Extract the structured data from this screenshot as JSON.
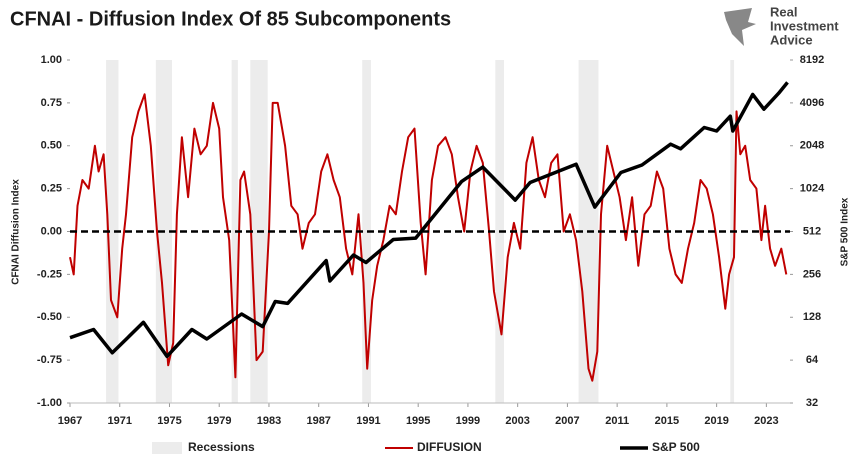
{
  "chart_data": {
    "type": "line",
    "title": "CFNAI - Diffusion Index Of 85 Subcomponents",
    "brand": [
      "Real",
      "Investment",
      "Advice"
    ],
    "ylabel": "CFNAI Diffusion Index",
    "y2label": "S&P 500 Index",
    "xlim": [
      1967,
      2024.9
    ],
    "xticks": [
      1967,
      1971,
      1975,
      1979,
      1983,
      1987,
      1991,
      1995,
      1999,
      2003,
      2007,
      2011,
      2015,
      2019,
      2023
    ],
    "ylim": [
      -1,
      1
    ],
    "yticks": [
      {
        "value": -1,
        "label": "-1.00"
      },
      {
        "value": -0.75,
        "label": "-0.75"
      },
      {
        "value": -0.5,
        "label": "-0.50"
      },
      {
        "value": -0.25,
        "label": "-0.25"
      },
      {
        "value": 0,
        "label": "0.00"
      },
      {
        "value": 0.25,
        "label": "0.25"
      },
      {
        "value": 0.5,
        "label": "0.50"
      },
      {
        "value": 0.75,
        "label": "0.75"
      },
      {
        "value": 1,
        "label": "1.00"
      }
    ],
    "y2lim": [
      32,
      8192
    ],
    "y2ticks": [
      32,
      64,
      128,
      256,
      512,
      1024,
      2048,
      4096,
      8192
    ],
    "y2log": true,
    "reference_line": 0,
    "recessions": {
      "name": "Recessions",
      "color": "#ececec",
      "ranges": [
        [
          1969.9,
          1970.9
        ],
        [
          1973.9,
          1975.2
        ],
        [
          1980.0,
          1980.5
        ],
        [
          1981.5,
          1982.9
        ],
        [
          1990.5,
          1991.2
        ],
        [
          2001.2,
          2001.9
        ],
        [
          2007.9,
          2009.5
        ],
        [
          2020.1,
          2020.4
        ]
      ]
    },
    "series": [
      {
        "name": "DIFFUSION",
        "color": "#c00000",
        "width": 2,
        "x": [
          1967.0,
          1967.3,
          1967.6,
          1968.0,
          1968.5,
          1969.0,
          1969.3,
          1969.7,
          1970.0,
          1970.3,
          1970.8,
          1971.2,
          1971.5,
          1972.0,
          1972.5,
          1973.0,
          1973.5,
          1974.0,
          1974.4,
          1974.9,
          1975.3,
          1975.6,
          1976.0,
          1976.5,
          1977.0,
          1977.5,
          1978.0,
          1978.5,
          1979.0,
          1979.3,
          1979.8,
          1980.3,
          1980.7,
          1981.0,
          1981.5,
          1982.0,
          1982.5,
          1983.0,
          1983.3,
          1983.7,
          1984.3,
          1984.8,
          1985.3,
          1985.7,
          1986.2,
          1986.7,
          1987.2,
          1987.7,
          1988.2,
          1988.7,
          1989.2,
          1989.7,
          1990.2,
          1990.6,
          1990.9,
          1991.3,
          1991.7,
          1992.2,
          1992.7,
          1993.2,
          1993.7,
          1994.2,
          1994.7,
          1995.2,
          1995.6,
          1996.1,
          1996.6,
          1997.2,
          1997.7,
          1998.2,
          1998.7,
          1999.2,
          1999.7,
          2000.2,
          2000.7,
          2001.1,
          2001.7,
          2002.2,
          2002.7,
          2003.2,
          2003.7,
          2004.2,
          2004.7,
          2005.2,
          2005.7,
          2006.2,
          2006.7,
          2007.2,
          2007.7,
          2008.2,
          2008.7,
          2009.0,
          2009.4,
          2009.7,
          2010.2,
          2010.7,
          2011.2,
          2011.7,
          2012.2,
          2012.7,
          2013.2,
          2013.7,
          2014.2,
          2014.7,
          2015.2,
          2015.7,
          2016.2,
          2016.7,
          2017.2,
          2017.7,
          2018.2,
          2018.7,
          2019.2,
          2019.7,
          2020.0,
          2020.4,
          2020.6,
          2020.9,
          2021.3,
          2021.7,
          2022.2,
          2022.6,
          2022.9,
          2023.3,
          2023.7,
          2024.2,
          2024.6
        ],
        "values": [
          -0.15,
          -0.25,
          0.15,
          0.3,
          0.25,
          0.5,
          0.35,
          0.45,
          0.1,
          -0.4,
          -0.5,
          -0.1,
          0.1,
          0.55,
          0.7,
          0.8,
          0.5,
          0.0,
          -0.3,
          -0.78,
          -0.65,
          0.1,
          0.55,
          0.2,
          0.6,
          0.45,
          0.5,
          0.75,
          0.6,
          0.2,
          -0.05,
          -0.85,
          0.3,
          0.35,
          0.1,
          -0.75,
          -0.7,
          0.0,
          0.75,
          0.75,
          0.5,
          0.15,
          0.1,
          -0.1,
          0.05,
          0.1,
          0.35,
          0.45,
          0.3,
          0.2,
          -0.1,
          -0.25,
          0.1,
          -0.3,
          -0.8,
          -0.4,
          -0.2,
          -0.05,
          0.15,
          0.1,
          0.35,
          0.55,
          0.6,
          0.05,
          -0.25,
          0.3,
          0.5,
          0.55,
          0.45,
          0.2,
          0.0,
          0.35,
          0.5,
          0.4,
          0.0,
          -0.35,
          -0.6,
          -0.15,
          0.05,
          -0.1,
          0.4,
          0.55,
          0.3,
          0.2,
          0.4,
          0.45,
          0.0,
          0.1,
          -0.05,
          -0.35,
          -0.8,
          -0.87,
          -0.7,
          0.1,
          0.5,
          0.35,
          0.2,
          -0.05,
          0.2,
          -0.2,
          0.1,
          0.15,
          0.35,
          0.25,
          -0.1,
          -0.25,
          -0.3,
          -0.1,
          0.05,
          0.3,
          0.25,
          0.1,
          -0.15,
          -0.45,
          -0.25,
          -0.15,
          0.7,
          0.45,
          0.5,
          0.3,
          0.25,
          -0.05,
          0.15,
          -0.1,
          -0.2,
          -0.1,
          -0.25
        ]
      },
      {
        "name": "S&P 500",
        "color": "#000000",
        "width": 3.5,
        "axis": "y2",
        "x": [
          1967.0,
          1968.9,
          1970.4,
          1972.9,
          1974.8,
          1976.8,
          1978.0,
          1980.8,
          1982.5,
          1983.5,
          1984.5,
          1987.6,
          1987.9,
          1989.8,
          1990.8,
          1993.0,
          1994.8,
          1998.5,
          2000.2,
          2002.8,
          2004.0,
          2007.7,
          2009.2,
          2011.3,
          2013.0,
          2015.3,
          2016.1,
          2018.0,
          2019.0,
          2020.1,
          2020.3,
          2021.9,
          2022.8,
          2024.0,
          2024.7
        ],
        "values": [
          92,
          105,
          72,
          118,
          68,
          105,
          90,
          135,
          110,
          165,
          160,
          320,
          230,
          350,
          310,
          450,
          460,
          1150,
          1450,
          850,
          1130,
          1520,
          760,
          1330,
          1500,
          2100,
          1950,
          2750,
          2600,
          3300,
          2600,
          4700,
          3700,
          4800,
          5700
        ]
      }
    ]
  }
}
